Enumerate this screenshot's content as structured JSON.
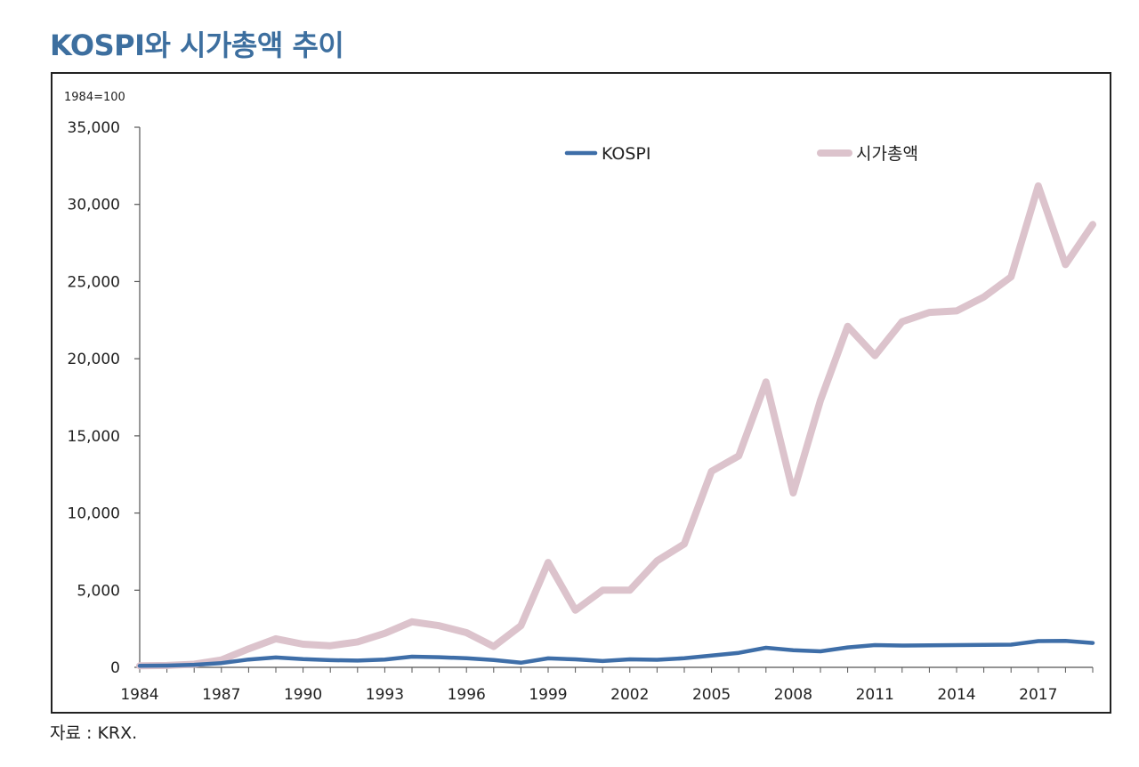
{
  "title": "KOSPI와 시가총액 추이",
  "source": "자료 : KRX.",
  "colors": {
    "title": "#3d6f9f",
    "kospi": "#3e6ea8",
    "market_cap": "#dcc3cc"
  },
  "chart_data": {
    "type": "line",
    "title": "KOSPI와 시가총액 추이",
    "unit_note": "1984=100",
    "xlabel": "",
    "ylabel": "",
    "ylim": [
      0,
      35000
    ],
    "yticks": [
      0,
      5000,
      10000,
      15000,
      20000,
      25000,
      30000,
      35000
    ],
    "ytick_labels": [
      "0",
      "5,000",
      "10,000",
      "15,000",
      "20,000",
      "25,000",
      "30,000",
      "35,000"
    ],
    "xlim": [
      1984,
      2019
    ],
    "xtick_labels": [
      "1984",
      "1987",
      "1990",
      "1993",
      "1996",
      "1999",
      "2002",
      "2005",
      "2008",
      "2011",
      "2014",
      "2017"
    ],
    "grid": false,
    "legend_position": "top-center",
    "x": [
      1984,
      1985,
      1986,
      1987,
      1988,
      1989,
      1990,
      1991,
      1992,
      1993,
      1994,
      1995,
      1996,
      1997,
      1998,
      1999,
      2000,
      2001,
      2002,
      2003,
      2004,
      2005,
      2006,
      2007,
      2008,
      2009,
      2010,
      2011,
      2012,
      2013,
      2014,
      2015,
      2016,
      2017,
      2018,
      2019
    ],
    "series": [
      {
        "name": "KOSPI",
        "values": [
          100,
          115,
          165,
          275,
          510,
          640,
          530,
          465,
          440,
          510,
          690,
          655,
          590,
          480,
          300,
          580,
          520,
          410,
          520,
          490,
          590,
          760,
          940,
          1270,
          1110,
          1040,
          1290,
          1440,
          1410,
          1430,
          1440,
          1460,
          1470,
          1700,
          1710,
          1580
        ]
      },
      {
        "name": "시가총액",
        "values": [
          100,
          120,
          200,
          480,
          1200,
          1850,
          1500,
          1400,
          1650,
          2200,
          2950,
          2700,
          2250,
          1350,
          2700,
          6800,
          3700,
          5000,
          5000,
          6900,
          8000,
          12700,
          13700,
          18500,
          11300,
          17300,
          22100,
          20200,
          22400,
          23000,
          23100,
          24000,
          25300,
          31200,
          26100,
          28700
        ]
      }
    ]
  }
}
